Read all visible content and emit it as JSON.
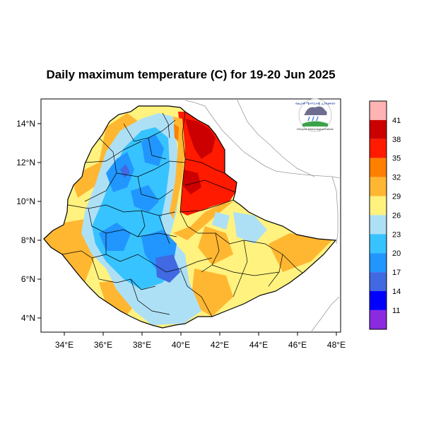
{
  "title": "Daily maximum temperature (C) for 19-20 Jun 2025",
  "map": {
    "region": "Ethiopia",
    "lon_range": [
      33,
      48.2
    ],
    "lat_range": [
      3.2,
      15
    ],
    "lon_ticks": [
      "34°E",
      "36°E",
      "38°E",
      "40°E",
      "42°E",
      "44°E",
      "46°E",
      "48°E"
    ],
    "lat_ticks": [
      "4°N",
      "6°N",
      "8°N",
      "10°N",
      "12°N",
      "14°N"
    ]
  },
  "colorbar": {
    "labels": [
      "41",
      "38",
      "35",
      "32",
      "29",
      "26",
      "23",
      "20",
      "17",
      "14",
      "11"
    ],
    "colors": [
      "#ffb3b3",
      "#cc0000",
      "#ff1a00",
      "#ff7f00",
      "#ffb732",
      "#fff27f",
      "#aee0f5",
      "#37c3ff",
      "#2196ff",
      "#4169e1",
      "#0000ff",
      "#8a2be2"
    ]
  },
  "logo": {
    "text_amharic": "ብሔራዊ ሜትዮሮሎጂ ኢንስቲትዩት",
    "text_english": "Ethiopian Meteorological Institute"
  }
}
